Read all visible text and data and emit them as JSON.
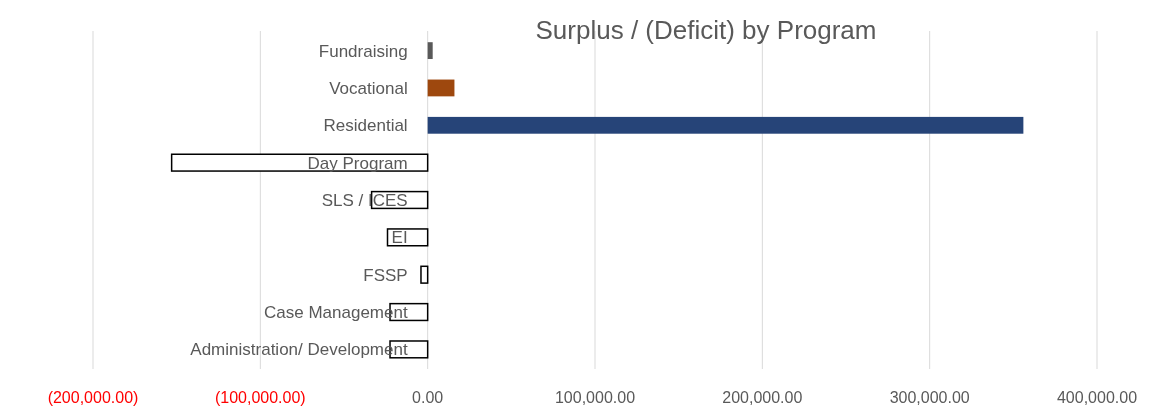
{
  "chart_data": {
    "type": "bar",
    "orientation": "horizontal",
    "title": "Surplus / (Deficit) by Program",
    "categories": [
      "Fundraising",
      "Vocational",
      "Residential",
      "Day Program",
      "SLS / ICES",
      "EI",
      "FSSP",
      "Case Management",
      "Administration/ Development"
    ],
    "values": [
      3000,
      16000,
      356000,
      -153000,
      -33500,
      -24000,
      -4000,
      -22500,
      -22500
    ],
    "colors": [
      "#595959",
      "#9e480e",
      "#264478",
      "#ffffff",
      "#ffffff",
      "#ffffff",
      "#ffffff",
      "#ffffff",
      "#ffffff"
    ],
    "xlim": [
      -200000,
      400000
    ],
    "xticks": [
      {
        "value": -200000,
        "label": "(200,000.00)"
      },
      {
        "value": -100000,
        "label": "(100,000.00)"
      },
      {
        "value": 0,
        "label": "0.00"
      },
      {
        "value": 100000,
        "label": "100,000.00"
      },
      {
        "value": 200000,
        "label": "200,000.00"
      },
      {
        "value": 300000,
        "label": "300,000.00"
      },
      {
        "value": 400000,
        "label": "400,000.00"
      }
    ],
    "grid": "x"
  }
}
